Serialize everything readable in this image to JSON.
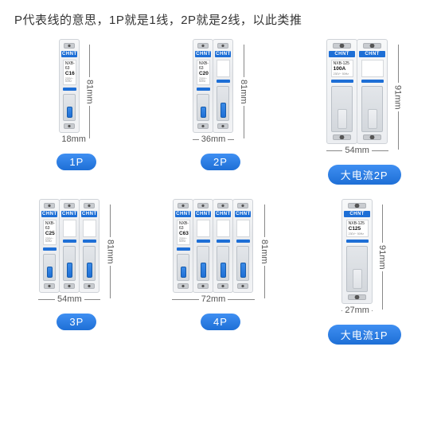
{
  "title": "P代表线的意思，1P就是1线，2P就是2线，以此类推",
  "brand": "CHNT",
  "colors": {
    "brand_blue": "#1e6fd6",
    "body_grey": "#eceef1",
    "outline": "#cfd3d8",
    "text": "#333333",
    "dim_text": "#555555",
    "badge_gradient_top": "#3f8ff2",
    "badge_gradient_bottom": "#1e6fd6"
  },
  "items": [
    {
      "badge": "1P",
      "poles": 1,
      "large": false,
      "model": "NXB-63",
      "rating": "C16",
      "width_mm": "18mm",
      "height_mm": "81mm",
      "pole_w": 26,
      "pole_h": 118
    },
    {
      "badge": "2P",
      "poles": 2,
      "large": false,
      "model": "NXB-63",
      "rating": "C20",
      "width_mm": "36mm",
      "height_mm": "81mm",
      "pole_w": 26,
      "pole_h": 118
    },
    {
      "badge": "大电流2P",
      "poles": 2,
      "large": true,
      "model": "NXB-125",
      "rating": "100A",
      "width_mm": "54mm",
      "height_mm": "91mm",
      "pole_w": 39,
      "pole_h": 132
    },
    {
      "badge": "3P",
      "poles": 3,
      "large": false,
      "model": "NXB-63",
      "rating": "C25",
      "width_mm": "54mm",
      "height_mm": "81mm",
      "pole_w": 26,
      "pole_h": 118
    },
    {
      "badge": "4P",
      "poles": 4,
      "large": false,
      "model": "NXB-63",
      "rating": "C63",
      "width_mm": "72mm",
      "height_mm": "81mm",
      "pole_w": 26,
      "pole_h": 118
    },
    {
      "badge": "大电流1P",
      "poles": 1,
      "large": true,
      "model": "NXB-125",
      "rating": "C125",
      "width_mm": "27mm",
      "height_mm": "91mm",
      "pole_w": 39,
      "pole_h": 132
    }
  ]
}
